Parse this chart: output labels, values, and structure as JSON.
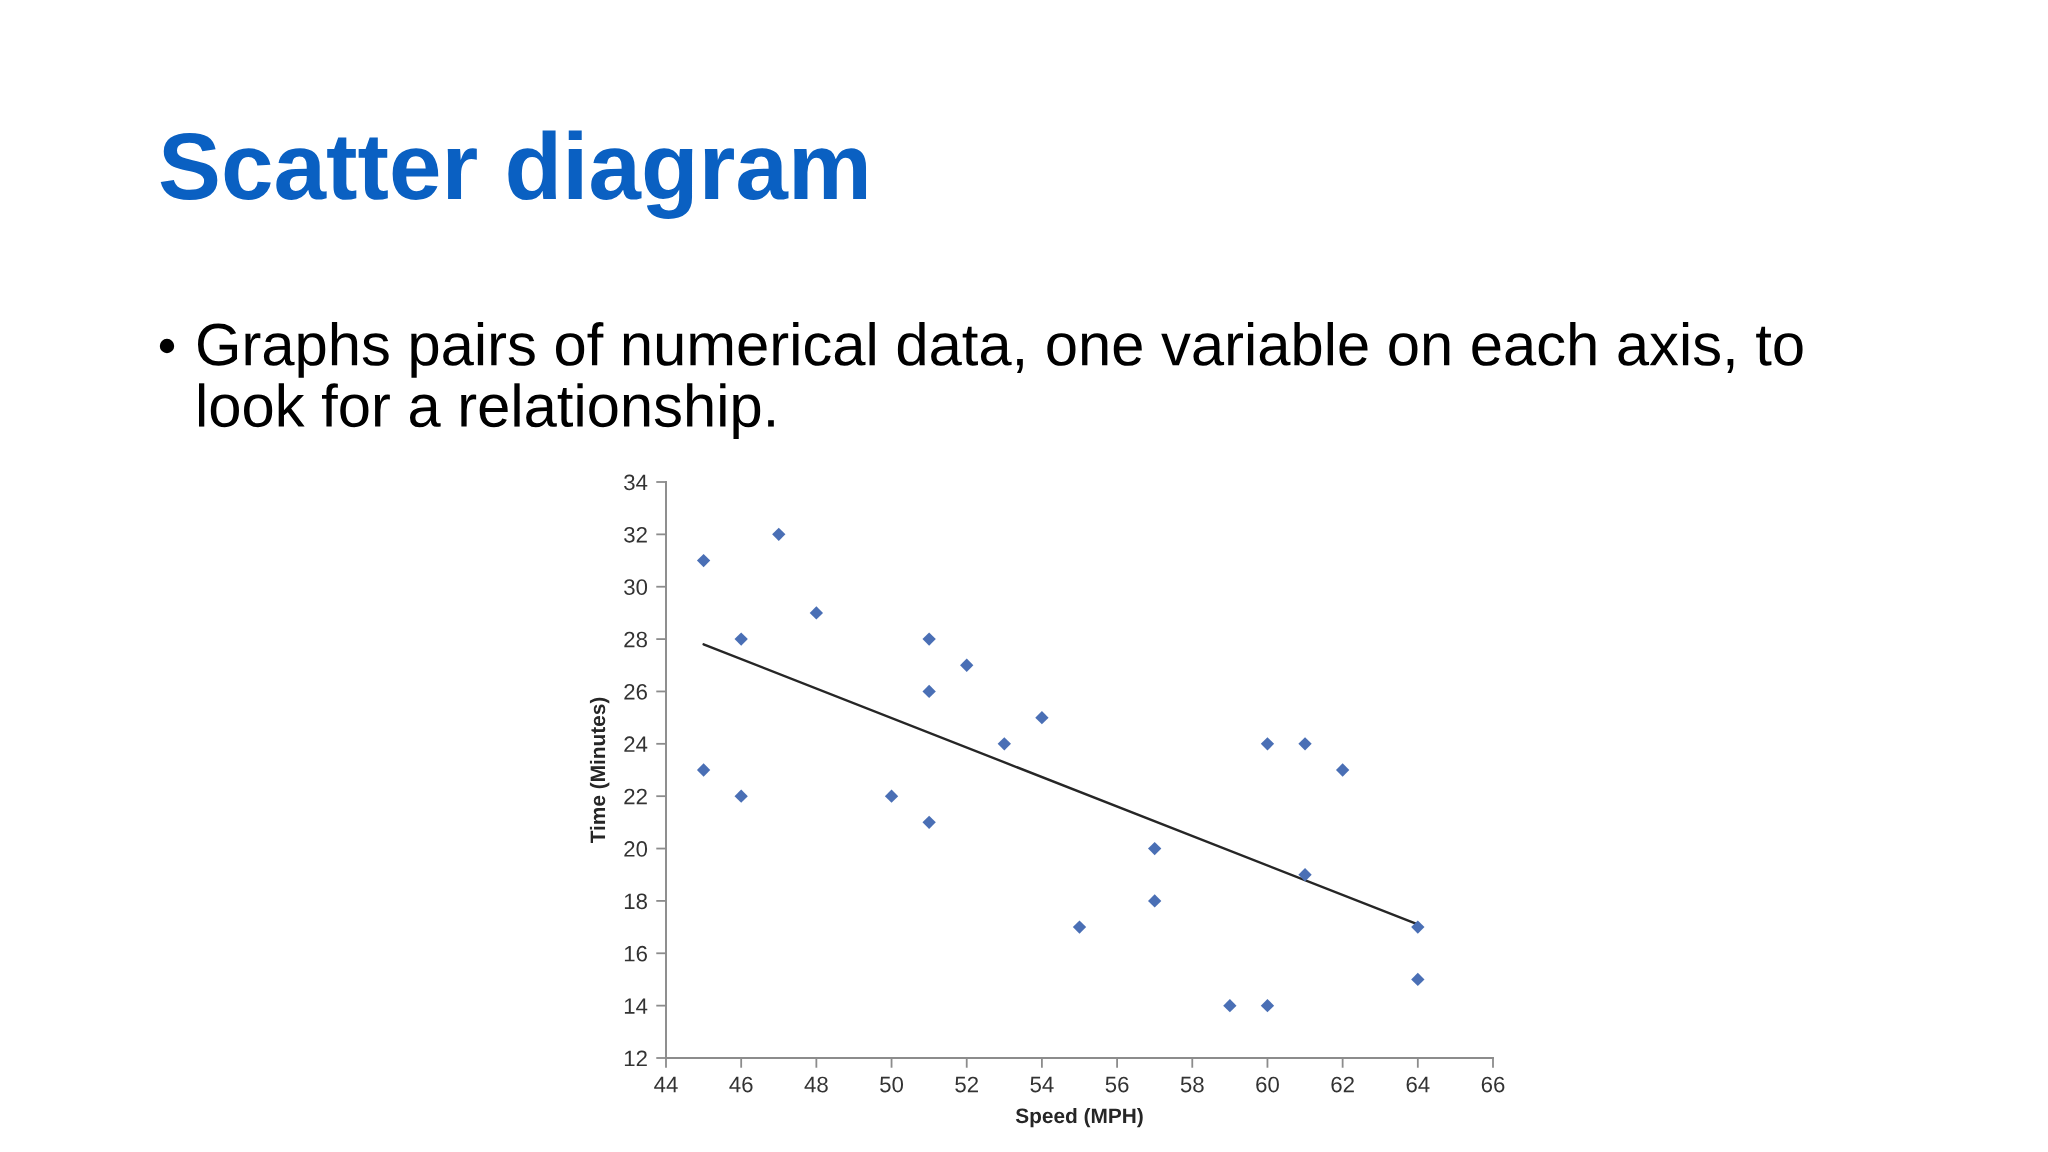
{
  "chart_data": {
    "type": "scatter",
    "title": "Scatter diagram",
    "subtitle": "Graphs pairs of numerical data, one variable on each axis, to\nlook for a relationship.",
    "xlabel": "Speed (MPH)",
    "ylabel": "Time (Minutes)",
    "xlim": [
      44,
      66
    ],
    "xticks": [
      44,
      46,
      48,
      50,
      52,
      54,
      56,
      58,
      60,
      62,
      64,
      66
    ],
    "ylim": [
      12,
      34
    ],
    "yticks": [
      12,
      14,
      16,
      18,
      20,
      22,
      24,
      26,
      28,
      30,
      32,
      34
    ],
    "grid": false,
    "series": [
      {
        "color": "#4a6fb5",
        "marker": "diamond",
        "x": [
          45,
          45,
          46,
          46,
          47,
          48,
          50,
          51,
          51,
          51,
          52,
          53,
          54,
          55,
          57,
          57,
          59,
          60,
          60,
          61,
          61,
          62,
          64,
          64
        ],
        "values": [
          31,
          23,
          28,
          22,
          32,
          29,
          22,
          28,
          26,
          21,
          27,
          24,
          25,
          17,
          20,
          18,
          14,
          24,
          14,
          24,
          19,
          23,
          17,
          15
        ]
      },
      {
        "type": "line",
        "color": "#262626",
        "marker": "none",
        "line_style": "solid",
        "x": [
          45,
          64
        ],
        "values": [
          27.8,
          17.1
        ]
      }
    ]
  }
}
